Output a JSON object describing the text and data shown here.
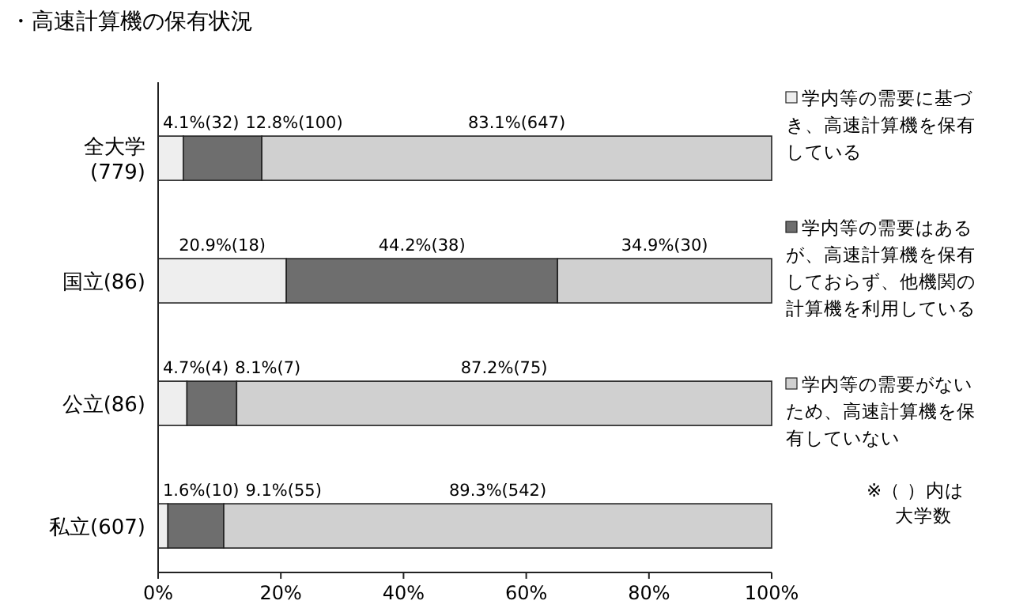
{
  "chart_data": {
    "type": "bar",
    "orientation": "horizontal",
    "stacked": true,
    "title": "・高速計算機の保有状況",
    "categories": [
      "全大学\n(779)",
      "国立(86)",
      "公立(86)",
      "私立(607)"
    ],
    "series": [
      {
        "name": "学内等の需要に基づき、高速計算機を保有している",
        "color": "#eeeeee",
        "values": [
          4.1,
          20.9,
          4.7,
          1.6
        ],
        "value_labels": [
          "4.1%(32)",
          "20.9%(18)",
          "4.7%(4)",
          "1.6%(10)"
        ]
      },
      {
        "name": "学内等の需要はあるが、高速計算機を保有しておらず、他機関の計算機を利用している",
        "color": "#6e6e6e",
        "values": [
          12.8,
          44.2,
          8.1,
          9.1
        ],
        "value_labels": [
          "12.8%(100)",
          "44.2%(38)",
          "8.1%(7)",
          "9.1%(55)"
        ]
      },
      {
        "name": "学内等の需要がないため、高速計算機を保有していない",
        "color": "#d0d0d0",
        "values": [
          83.1,
          34.9,
          87.2,
          89.3
        ],
        "value_labels": [
          "83.1%(647)",
          "34.9%(30)",
          "87.2%(75)",
          "89.3%(542)"
        ]
      }
    ],
    "xlim": [
      0,
      100
    ],
    "xticks": [
      {
        "value": 0,
        "label": "0%"
      },
      {
        "value": 20,
        "label": "20%"
      },
      {
        "value": 40,
        "label": "40%"
      },
      {
        "value": 60,
        "label": "60%"
      },
      {
        "value": 80,
        "label": "80%"
      },
      {
        "value": 100,
        "label": "100%"
      }
    ],
    "legend": "right",
    "annotations": [
      "※（ ）内は大学数"
    ]
  }
}
